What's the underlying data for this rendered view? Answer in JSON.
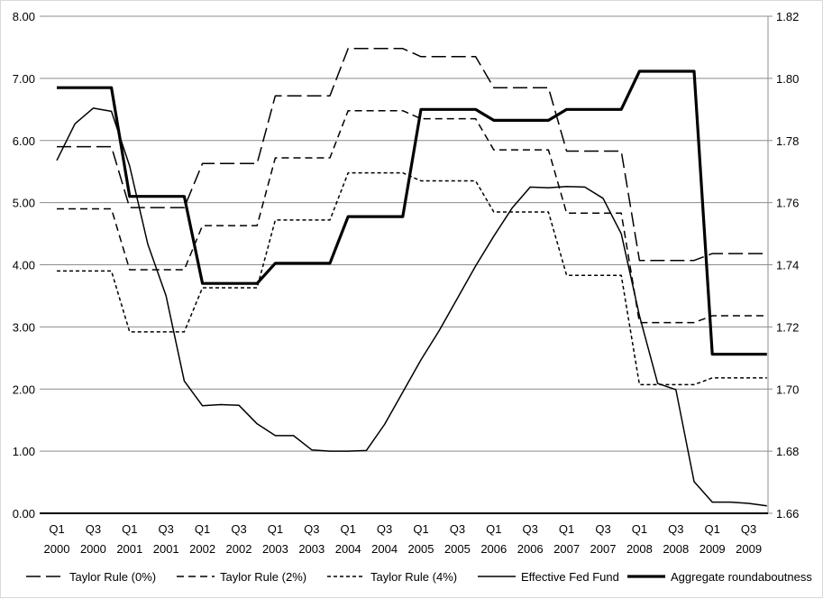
{
  "chart_data": {
    "type": "line",
    "title": "",
    "categories": [
      "Q1 2000",
      "Q2 2000",
      "Q3 2000",
      "Q4 2000",
      "Q1 2001",
      "Q2 2001",
      "Q3 2001",
      "Q4 2001",
      "Q1 2002",
      "Q2 2002",
      "Q3 2002",
      "Q4 2002",
      "Q1 2003",
      "Q2 2003",
      "Q3 2003",
      "Q4 2003",
      "Q1 2004",
      "Q2 2004",
      "Q3 2004",
      "Q4 2004",
      "Q1 2005",
      "Q2 2005",
      "Q3 2005",
      "Q4 2005",
      "Q1 2006",
      "Q2 2006",
      "Q3 2006",
      "Q4 2006",
      "Q1 2007",
      "Q2 2007",
      "Q3 2007",
      "Q4 2007",
      "Q1 2008",
      "Q2 2008",
      "Q3 2008",
      "Q4 2008",
      "Q1 2009",
      "Q2 2009",
      "Q3 2009",
      "Q4 2009"
    ],
    "x_tick_labels": [
      [
        "Q1",
        "2000"
      ],
      [
        "Q3",
        "2000"
      ],
      [
        "Q1",
        "2001"
      ],
      [
        "Q3",
        "2001"
      ],
      [
        "Q1",
        "2002"
      ],
      [
        "Q3",
        "2002"
      ],
      [
        "Q1",
        "2003"
      ],
      [
        "Q3",
        "2003"
      ],
      [
        "Q1",
        "2004"
      ],
      [
        "Q3",
        "2004"
      ],
      [
        "Q1",
        "2005"
      ],
      [
        "Q3",
        "2005"
      ],
      [
        "Q1",
        "2006"
      ],
      [
        "Q3",
        "2006"
      ],
      [
        "Q1",
        "2007"
      ],
      [
        "Q3",
        "2007"
      ],
      [
        "Q1",
        "2008"
      ],
      [
        "Q3",
        "2008"
      ],
      [
        "Q1",
        "2009"
      ],
      [
        "Q3",
        "2009"
      ]
    ],
    "y_left": {
      "range": [
        0,
        8
      ],
      "ticks": [
        "0.00",
        "1.00",
        "2.00",
        "3.00",
        "4.00",
        "5.00",
        "6.00",
        "7.00",
        "8.00"
      ]
    },
    "y_right": {
      "range": [
        1.66,
        1.82
      ],
      "ticks": [
        "1.66",
        "1.68",
        "1.70",
        "1.72",
        "1.74",
        "1.76",
        "1.78",
        "1.80",
        "1.82"
      ]
    },
    "grid": true,
    "legend_position": "bottom",
    "series": [
      {
        "name": "Taylor Rule (0%)",
        "axis": "left",
        "style": "long-dash",
        "values": [
          5.9,
          5.9,
          5.9,
          5.9,
          4.92,
          4.92,
          4.92,
          4.92,
          5.63,
          5.63,
          5.63,
          5.63,
          6.72,
          6.72,
          6.72,
          6.72,
          7.48,
          7.48,
          7.48,
          7.48,
          7.35,
          7.35,
          7.35,
          7.35,
          6.85,
          6.85,
          6.85,
          6.85,
          5.83,
          5.83,
          5.83,
          5.83,
          4.07,
          4.07,
          4.07,
          4.07,
          4.18,
          4.18,
          4.18,
          4.18
        ]
      },
      {
        "name": "Taylor Rule (2%)",
        "axis": "left",
        "style": "dash",
        "values": [
          4.9,
          4.9,
          4.9,
          4.9,
          3.92,
          3.92,
          3.92,
          3.92,
          4.63,
          4.63,
          4.63,
          4.63,
          5.72,
          5.72,
          5.72,
          5.72,
          6.48,
          6.48,
          6.48,
          6.48,
          6.35,
          6.35,
          6.35,
          6.35,
          5.85,
          5.85,
          5.85,
          5.85,
          4.83,
          4.83,
          4.83,
          4.83,
          3.07,
          3.07,
          3.07,
          3.07,
          3.18,
          3.18,
          3.18,
          3.18
        ]
      },
      {
        "name": "Taylor Rule (4%)",
        "axis": "left",
        "style": "short-dash",
        "values": [
          3.9,
          3.9,
          3.9,
          3.9,
          2.92,
          2.92,
          2.92,
          2.92,
          3.63,
          3.63,
          3.63,
          3.63,
          4.72,
          4.72,
          4.72,
          4.72,
          5.48,
          5.48,
          5.48,
          5.48,
          5.35,
          5.35,
          5.35,
          5.35,
          4.85,
          4.85,
          4.85,
          4.85,
          3.83,
          3.83,
          3.83,
          3.83,
          2.07,
          2.07,
          2.07,
          2.07,
          2.18,
          2.18,
          2.18,
          2.18
        ]
      },
      {
        "name": "Effective Fed Fund",
        "axis": "left",
        "style": "solid",
        "values": [
          5.68,
          6.27,
          6.52,
          6.47,
          5.59,
          4.33,
          3.5,
          2.13,
          1.73,
          1.75,
          1.74,
          1.44,
          1.25,
          1.25,
          1.02,
          1.0,
          1.0,
          1.01,
          1.43,
          1.95,
          2.47,
          2.94,
          3.46,
          3.98,
          4.46,
          4.91,
          5.25,
          5.24,
          5.26,
          5.25,
          5.07,
          4.5,
          3.18,
          2.09,
          1.99,
          0.51,
          0.18,
          0.18,
          0.16,
          0.12
        ]
      },
      {
        "name": "Aggregate roundaboutness",
        "axis": "right",
        "style": "thick-solid",
        "values": [
          1.797,
          1.797,
          1.797,
          1.797,
          1.762,
          1.762,
          1.762,
          1.762,
          1.734,
          1.734,
          1.734,
          1.734,
          1.7405,
          1.7405,
          1.7405,
          1.7405,
          1.7555,
          1.7555,
          1.7555,
          1.7555,
          1.79,
          1.79,
          1.79,
          1.79,
          1.7865,
          1.7865,
          1.7865,
          1.7865,
          1.79,
          1.79,
          1.79,
          1.79,
          1.8023,
          1.8023,
          1.8023,
          1.8023,
          1.7112,
          1.7112,
          1.7112,
          1.7112
        ]
      }
    ]
  }
}
